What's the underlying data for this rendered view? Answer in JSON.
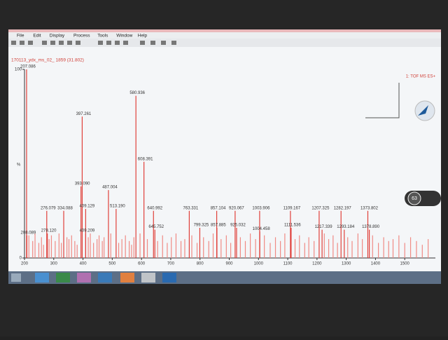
{
  "window": {
    "menu": [
      "File",
      "Edit",
      "Display",
      "Process",
      "Tools",
      "Window",
      "Help"
    ],
    "status_right": "1: TOF MS ES+",
    "badge": "63"
  },
  "chart_data": {
    "type": "bar",
    "title": "170113_ydx_ms_02_ 1859 (31.802)",
    "y_label": "%",
    "xlim": [
      200,
      1600
    ],
    "ylim": [
      0,
      100
    ],
    "xticks": [
      200,
      300,
      400,
      500,
      600,
      700,
      800,
      900,
      1000,
      1100,
      1200,
      1300,
      1400,
      1500
    ],
    "yticks": [
      0,
      100
    ],
    "series": [
      {
        "color": "#e0403a",
        "x": [
          207.086,
          397.261,
          580.936,
          608.391,
          393.09,
          487.004,
          409.129,
          513.19,
          276.079,
          334.088,
          640.992,
          763.331,
          857.104,
          920.067,
          1003.906,
          1109.167,
          1207.325,
          1282.197,
          1373.802,
          208.089,
          278.12,
          409.209,
          645.752,
          799.325,
          857.885,
          925.032,
          1004.458,
          1111.536,
          1217.339,
          1293.184,
          1378.89
        ],
        "x_labels": [
          "207.086",
          "397.261",
          "580.936",
          "608.391",
          "393.090",
          "487.004",
          "409.129",
          "513.190",
          "276.079",
          "334.088",
          "640.992",
          "763.331",
          "857.104",
          "920.067",
          "1003.906",
          "1109.167",
          "1207.325",
          "1282.197",
          "1373.802",
          "208.089",
          "278.120",
          "409.209",
          "645.752",
          "799.325",
          "857.885",
          "925.032",
          "1004.458",
          "1111.536",
          "1217.339",
          "1293.184",
          "1378.890"
        ],
        "values": [
          100,
          75,
          86,
          51,
          38,
          36,
          26,
          26,
          25,
          25,
          25,
          25,
          25,
          25,
          25,
          25,
          25,
          25,
          25,
          12,
          13,
          13,
          15,
          16,
          16,
          16,
          14,
          16,
          15,
          15,
          15
        ]
      },
      {
        "color": "#f08a84",
        "x": [
          215,
          228,
          236,
          249,
          258,
          265,
          284,
          292,
          305,
          318,
          326,
          345,
          352,
          361,
          372,
          380,
          418,
          425,
          436,
          448,
          455,
          466,
          472,
          495,
          522,
          533,
          545,
          558,
          566,
          574,
          595,
          620,
          655,
          672,
          688,
          702,
          718,
          735,
          748,
          772,
          790,
          812,
          830,
          845,
          872,
          890,
          905,
          938,
          955,
          972,
          990,
          1020,
          1040,
          1058,
          1075,
          1090,
          1125,
          1140,
          1158,
          1172,
          1190,
          1225,
          1240,
          1255,
          1270,
          1305,
          1320,
          1340,
          1355,
          1390,
          1410,
          1428,
          1445,
          1460,
          1480,
          1500,
          1520,
          1540,
          1560,
          1580
        ],
        "values": [
          12,
          9,
          13,
          8,
          11,
          7,
          10,
          12,
          9,
          13,
          8,
          11,
          10,
          12,
          9,
          7,
          11,
          13,
          8,
          10,
          12,
          9,
          11,
          13,
          8,
          10,
          12,
          9,
          7,
          11,
          13,
          10,
          9,
          12,
          8,
          11,
          13,
          9,
          10,
          12,
          8,
          11,
          9,
          13,
          10,
          12,
          8,
          11,
          9,
          13,
          10,
          12,
          8,
          11,
          9,
          13,
          10,
          12,
          8,
          11,
          9,
          13,
          10,
          12,
          8,
          11,
          9,
          13,
          10,
          12,
          8,
          11,
          9,
          10,
          12,
          8,
          11,
          9,
          7,
          10
        ]
      }
    ]
  }
}
